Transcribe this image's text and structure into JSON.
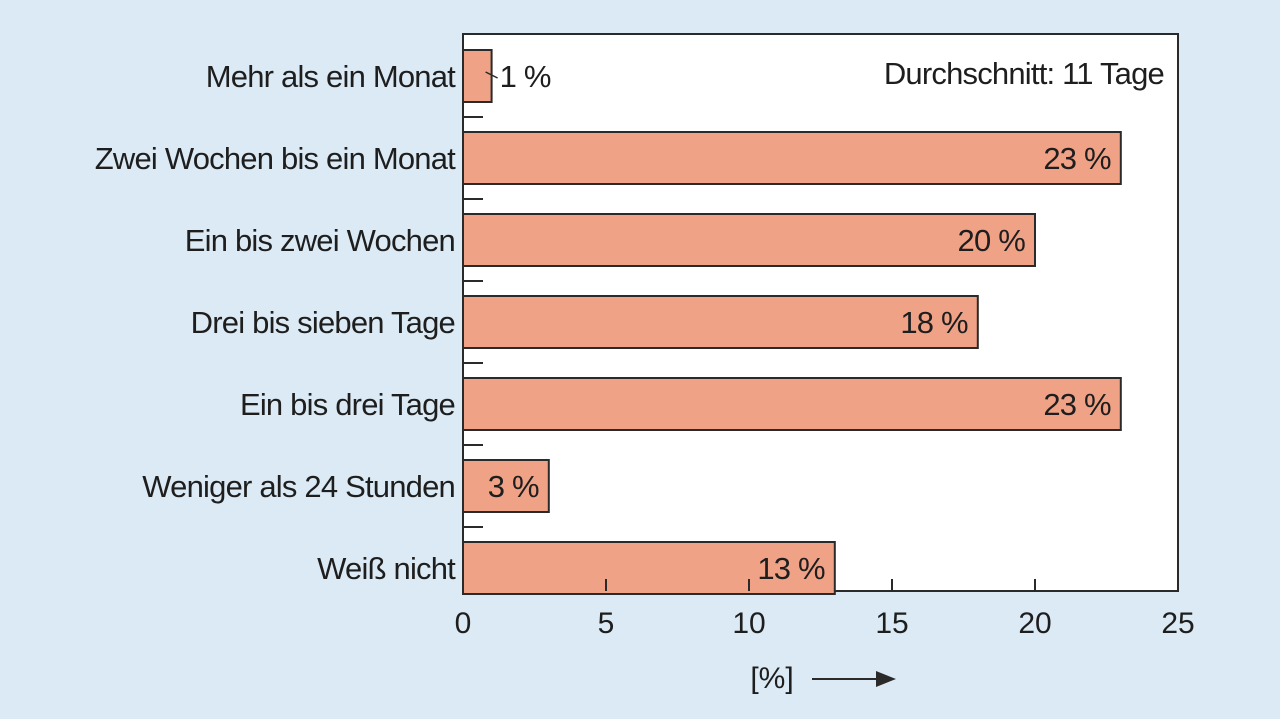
{
  "colors": {
    "background": "#dbeaf4",
    "plot_background": "#ffffff",
    "bar_fill": "#f0a287",
    "bar_stroke": "#2a2a2a",
    "axis": "#2a2a2a",
    "text": "#1e1e1e"
  },
  "chart_data": {
    "type": "bar",
    "orientation": "horizontal",
    "categories": [
      "Mehr als ein Monat",
      "Zwei Wochen bis ein Monat",
      "Ein bis zwei Wochen",
      "Drei bis sieben Tage",
      "Ein bis drei Tage",
      "Weniger als 24 Stunden",
      "Weiß nicht"
    ],
    "values": [
      1,
      23,
      20,
      18,
      23,
      3,
      13
    ],
    "value_labels": [
      "1 %",
      "23 %",
      "20 %",
      "18 %",
      "23 %",
      "3 %",
      "13 %"
    ],
    "xlabel": "[%]",
    "xlim": [
      0,
      25
    ],
    "xticks": [
      0,
      5,
      10,
      15,
      20,
      25
    ],
    "xtick_labels": [
      "0",
      "5",
      "10",
      "15",
      "20",
      "25"
    ],
    "annotation": "Durchschnitt: 11 Tage",
    "grid": false,
    "legend": "none"
  }
}
